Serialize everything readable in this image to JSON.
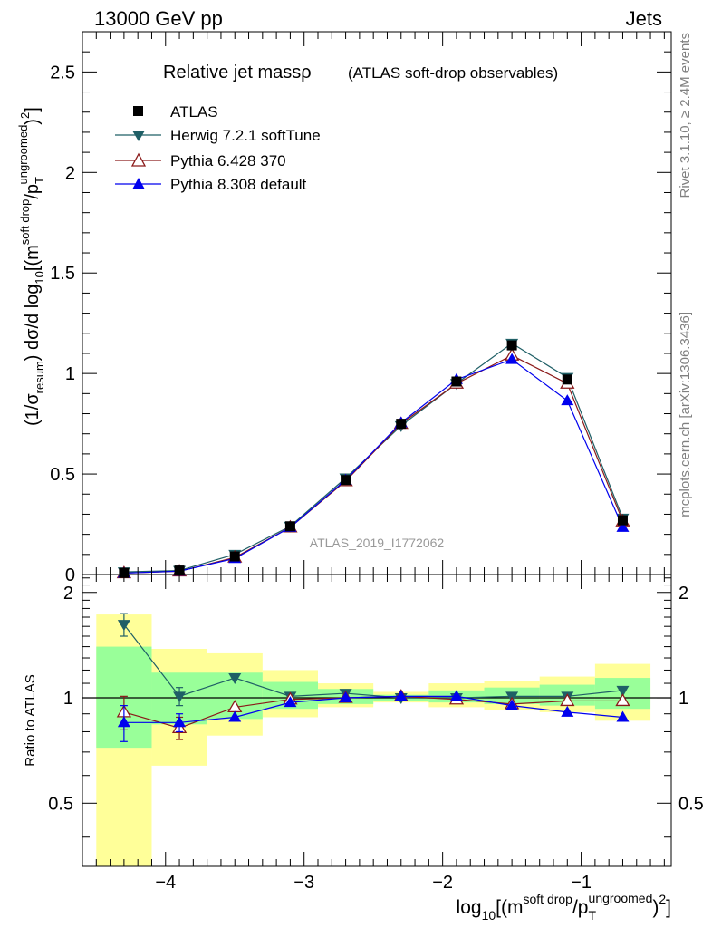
{
  "header": {
    "left": "13000 GeV pp",
    "right": "Jets"
  },
  "side_labels": {
    "top": "Rivet 3.1.10, ≥ 2.4M events",
    "bottom": "mcplots.cern.ch [arXiv:1306.3436]"
  },
  "colors": {
    "atlas": "#000000",
    "herwig": "#1f5f66",
    "pythia6": "#8b1a1a",
    "pythia8": "#0000ee",
    "band_yellow": "#ffff99",
    "band_green": "#99ff99"
  },
  "chart_data": [
    {
      "type": "line",
      "title": "Relative jet massρ",
      "subtitle": "(ATLAS soft-drop observables)",
      "watermark": "ATLAS_2019_I1772062",
      "ylabel_parts": {
        "a": "(1/σ",
        "a_sub": "resum",
        "b": ") dσ/d log",
        "b_sub": "10",
        "c": "[(m",
        "c_sup": "soft drop",
        "d": "/p",
        "d_sub": "T",
        "d_sup": "ungroomed",
        "e": ")",
        "e_sup": "2",
        "f": "]"
      },
      "xlim": [
        -4.6,
        -0.35
      ],
      "ylim": [
        0,
        2.7
      ],
      "yticks": [
        0,
        0.5,
        1,
        1.5,
        2,
        2.5
      ],
      "ytick_labels": [
        "0",
        "0.5",
        "1",
        "1.5",
        "2",
        "2.5"
      ],
      "legend_position": "top-left",
      "x": [
        -4.3,
        -3.9,
        -3.5,
        -3.1,
        -2.7,
        -2.3,
        -1.9,
        -1.5,
        -1.1,
        -0.7
      ],
      "series": [
        {
          "name": "ATLAS",
          "marker": "square",
          "values": [
            0.008,
            0.02,
            0.09,
            0.24,
            0.47,
            0.75,
            0.96,
            1.14,
            0.97,
            0.27
          ]
        },
        {
          "name": "Herwig 7.2.1 softTune",
          "marker": "triangle-down",
          "values": [
            0.013,
            0.02,
            0.1,
            0.24,
            0.48,
            0.74,
            0.95,
            1.15,
            0.98,
            0.28
          ]
        },
        {
          "name": "Pythia 6.428 370",
          "marker": "triangle-up-open",
          "values": [
            0.007,
            0.016,
            0.085,
            0.235,
            0.465,
            0.75,
            0.95,
            1.09,
            0.95,
            0.265
          ]
        },
        {
          "name": "Pythia 8.308 default",
          "marker": "triangle-up",
          "values": [
            0.007,
            0.017,
            0.08,
            0.235,
            0.47,
            0.755,
            0.97,
            1.07,
            0.865,
            0.235
          ]
        }
      ]
    },
    {
      "type": "line",
      "ylabel": "Ratio to ATLAS",
      "xlabel_parts": {
        "a": "log",
        "a_sub": "10",
        "b": "[(m",
        "b_sup": "soft drop",
        "c": "/p",
        "c_sub": "T",
        "c_sup": "ungroomed",
        "d": ")",
        "d_sup": "2",
        "e": "]"
      },
      "xlim": [
        -4.6,
        -0.35
      ],
      "ylim": [
        0.33,
        2.25
      ],
      "xticks": [
        -4,
        -3,
        -2,
        -1
      ],
      "xtick_labels": [
        "−4",
        "−3",
        "−2",
        "−1"
      ],
      "yticks": [
        0.5,
        1,
        2
      ],
      "ytick_labels": [
        "0.5",
        "1",
        "2"
      ],
      "x": [
        -4.3,
        -3.9,
        -3.5,
        -3.1,
        -2.7,
        -2.3,
        -1.9,
        -1.5,
        -1.1,
        -0.7
      ],
      "bins": [
        [
          -4.5,
          -4.1
        ],
        [
          -4.1,
          -3.7
        ],
        [
          -3.7,
          -3.3
        ],
        [
          -3.3,
          -2.9
        ],
        [
          -2.9,
          -2.5
        ],
        [
          -2.5,
          -2.1
        ],
        [
          -2.1,
          -1.7
        ],
        [
          -1.7,
          -1.3
        ],
        [
          -1.3,
          -0.9
        ],
        [
          -0.9,
          -0.5
        ]
      ],
      "band_yellow": [
        [
          0.0,
          1.73
        ],
        [
          0.64,
          1.38
        ],
        [
          0.78,
          1.34
        ],
        [
          0.88,
          1.2
        ],
        [
          0.94,
          1.1
        ],
        [
          0.97,
          1.04
        ],
        [
          0.94,
          1.1
        ],
        [
          0.92,
          1.12
        ],
        [
          0.91,
          1.15
        ],
        [
          0.86,
          1.25
        ]
      ],
      "band_green": [
        [
          0.72,
          1.4
        ],
        [
          0.84,
          1.18
        ],
        [
          0.87,
          1.18
        ],
        [
          0.93,
          1.11
        ],
        [
          0.96,
          1.06
        ],
        [
          0.98,
          1.02
        ],
        [
          0.97,
          1.05
        ],
        [
          0.96,
          1.07
        ],
        [
          0.95,
          1.09
        ],
        [
          0.93,
          1.14
        ]
      ],
      "series": [
        {
          "name": "Herwig 7.2.1 softTune",
          "marker": "triangle-down",
          "values": [
            1.62,
            1.01,
            1.14,
            1.01,
            1.03,
            1.0,
            1.0,
            1.01,
            1.01,
            1.05
          ],
          "err": [
            0.12,
            0.06,
            0.0,
            0.0,
            0.0,
            0.0,
            0.0,
            0.0,
            0.0,
            0.0
          ]
        },
        {
          "name": "Pythia 6.428 370",
          "marker": "triangle-up-open",
          "values": [
            0.91,
            0.82,
            0.94,
            0.99,
            1.0,
            1.01,
            0.99,
            0.96,
            0.98,
            0.98
          ],
          "err": [
            0.1,
            0.06,
            0.0,
            0.0,
            0.0,
            0.0,
            0.0,
            0.0,
            0.0,
            0.0
          ]
        },
        {
          "name": "Pythia 8.308 default",
          "marker": "triangle-up",
          "values": [
            0.85,
            0.85,
            0.88,
            0.97,
            1.0,
            1.01,
            1.01,
            0.95,
            0.91,
            0.88
          ],
          "err": [
            0.1,
            0.05,
            0.0,
            0.0,
            0.0,
            0.0,
            0.0,
            0.0,
            0.0,
            0.0
          ]
        }
      ]
    }
  ]
}
